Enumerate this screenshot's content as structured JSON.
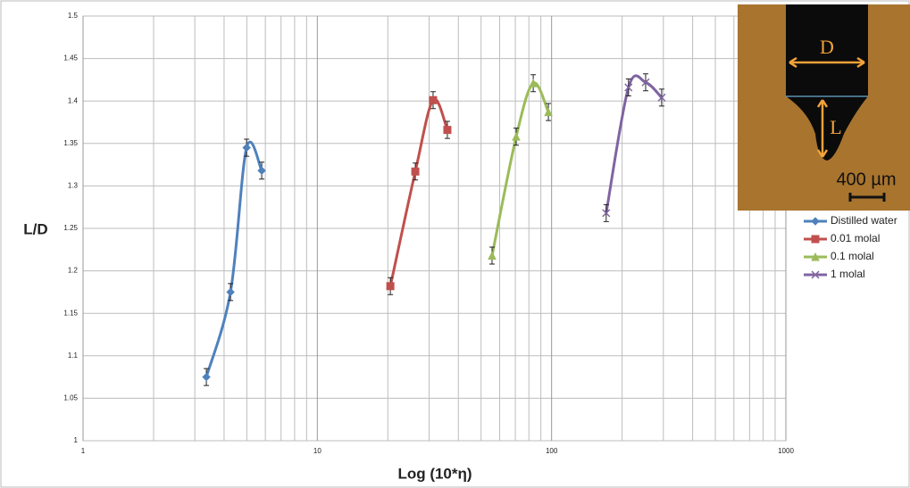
{
  "chart_data": {
    "type": "line",
    "y_label": "L/D",
    "x_label": "Log (10*η)",
    "xscale": "log",
    "xlim": [
      1,
      1000
    ],
    "xticks": [
      1,
      10,
      100,
      1000
    ],
    "xminorticks": [
      2,
      3,
      4,
      5,
      6,
      7,
      8,
      9,
      20,
      30,
      40,
      50,
      60,
      70,
      80,
      90,
      200,
      300,
      400,
      500,
      600,
      700,
      800,
      900
    ],
    "ylim": [
      1,
      1.5
    ],
    "yticks": [
      1,
      1.05,
      1.1,
      1.15,
      1.2,
      1.25,
      1.3,
      1.35,
      1.4,
      1.45,
      1.5
    ],
    "grid": true,
    "legend": "right",
    "series": [
      {
        "name": "Distilled water",
        "color": "#4f81bd",
        "marker": "diamond",
        "x": [
          3.36,
          4.26,
          4.99,
          5.79
        ],
        "values": [
          1.075,
          1.175,
          1.345,
          1.318
        ],
        "errors": [
          0.01,
          0.01,
          0.01,
          0.01
        ]
      },
      {
        "name": "0.01 molal",
        "color": "#c0504d",
        "marker": "square",
        "x": [
          20.5,
          26.2,
          31.2,
          35.9
        ],
        "values": [
          1.182,
          1.317,
          1.401,
          1.366
        ],
        "errors": [
          0.01,
          0.01,
          0.01,
          0.01
        ]
      },
      {
        "name": "0.1 molal",
        "color": "#9bbb59",
        "marker": "triangle",
        "x": [
          55.7,
          70.6,
          83.5,
          96.9
        ],
        "values": [
          1.218,
          1.358,
          1.421,
          1.387
        ],
        "errors": [
          0.01,
          0.01,
          0.01,
          0.01
        ]
      },
      {
        "name": "1 molal",
        "color": "#8064a2",
        "marker": "x",
        "x": [
          171,
          213,
          252,
          295
        ],
        "values": [
          1.268,
          1.416,
          1.422,
          1.404
        ],
        "errors": [
          0.01,
          0.01,
          0.01,
          0.01
        ]
      }
    ]
  },
  "inset": {
    "width_label": "D",
    "length_label": "L",
    "scale_label": "400 µm"
  }
}
